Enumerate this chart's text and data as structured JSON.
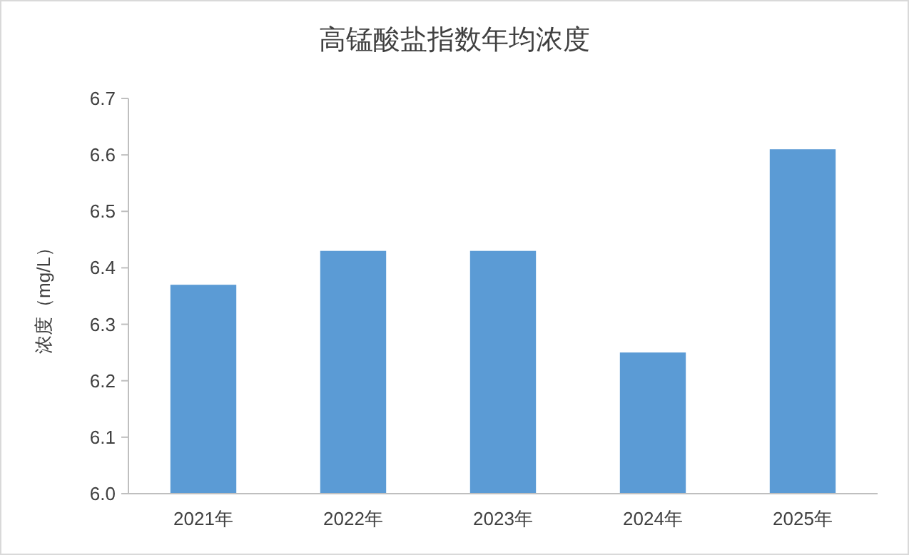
{
  "chart_data": {
    "type": "bar",
    "title": "高锰酸盐指数年均浓度",
    "ylabel": "浓度（mg/L）",
    "categories": [
      "2021年",
      "2022年",
      "2023年",
      "2024年",
      "2025年"
    ],
    "values": [
      6.37,
      6.43,
      6.43,
      6.25,
      6.61
    ],
    "color": "#5b9bd5",
    "ylim": [
      6.0,
      6.7
    ],
    "yticks": [
      {
        "value": 6.0,
        "label": "6.0"
      },
      6.1,
      6.2,
      6.3,
      6.4,
      6.5,
      6.6,
      6.7
    ],
    "grid": false
  }
}
